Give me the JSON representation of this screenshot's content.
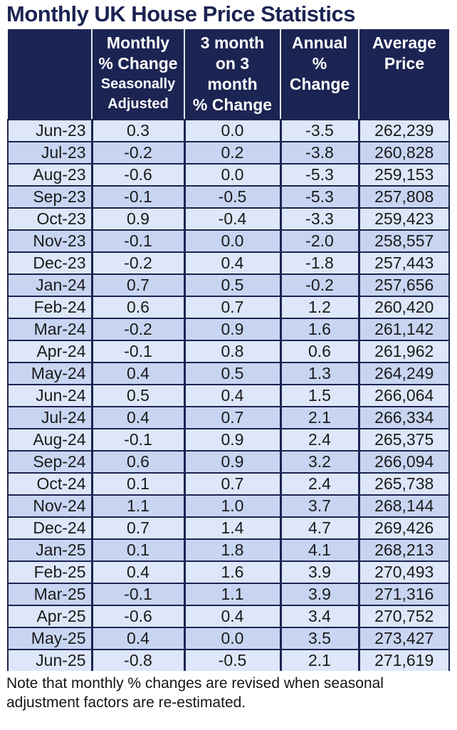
{
  "title": "Monthly UK House Price Statistics",
  "colors": {
    "navy": "#1b2452",
    "header_text": "#ffffff",
    "row_light": "#dde7f9",
    "row_dark": "#c8d5f2",
    "body_text": "#1a1a1a"
  },
  "table": {
    "headers": [
      {
        "main": "",
        "sub": ""
      },
      {
        "main": "Monthly\n% Change",
        "sub": "Seasonally\nAdjusted"
      },
      {
        "main": "3 month\non 3\nmonth\n% Change",
        "sub": ""
      },
      {
        "main": "Annual\n%\nChange",
        "sub": ""
      },
      {
        "main": "Average\nPrice",
        "sub": ""
      }
    ]
  },
  "note": "Note that monthly % changes are revised when seasonal adjustment factors are re-estimated.",
  "chart_data": {
    "type": "table",
    "title": "Monthly UK House Price Statistics",
    "columns": [
      "",
      "Monthly % Change Seasonally Adjusted",
      "3 month on 3 month % Change",
      "Annual % Change",
      "Average Price"
    ],
    "rows": [
      [
        "Jun-23",
        "0.3",
        "0.0",
        "-3.5",
        "262,239"
      ],
      [
        "Jul-23",
        "-0.2",
        "0.2",
        "-3.8",
        "260,828"
      ],
      [
        "Aug-23",
        "-0.6",
        "0.0",
        "-5.3",
        "259,153"
      ],
      [
        "Sep-23",
        "-0.1",
        "-0.5",
        "-5.3",
        "257,808"
      ],
      [
        "Oct-23",
        "0.9",
        "-0.4",
        "-3.3",
        "259,423"
      ],
      [
        "Nov-23",
        "-0.1",
        "0.0",
        "-2.0",
        "258,557"
      ],
      [
        "Dec-23",
        "-0.2",
        "0.4",
        "-1.8",
        "257,443"
      ],
      [
        "Jan-24",
        "0.7",
        "0.5",
        "-0.2",
        "257,656"
      ],
      [
        "Feb-24",
        "0.6",
        "0.7",
        "1.2",
        "260,420"
      ],
      [
        "Mar-24",
        "-0.2",
        "0.9",
        "1.6",
        "261,142"
      ],
      [
        "Apr-24",
        "-0.1",
        "0.8",
        "0.6",
        "261,962"
      ],
      [
        "May-24",
        "0.4",
        "0.5",
        "1.3",
        "264,249"
      ],
      [
        "Jun-24",
        "0.5",
        "0.4",
        "1.5",
        "266,064"
      ],
      [
        "Jul-24",
        "0.4",
        "0.7",
        "2.1",
        "266,334"
      ],
      [
        "Aug-24",
        "-0.1",
        "0.9",
        "2.4",
        "265,375"
      ],
      [
        "Sep-24",
        "0.6",
        "0.9",
        "3.2",
        "266,094"
      ],
      [
        "Oct-24",
        "0.1",
        "0.7",
        "2.4",
        "265,738"
      ],
      [
        "Nov-24",
        "1.1",
        "1.0",
        "3.7",
        "268,144"
      ],
      [
        "Dec-24",
        "0.7",
        "1.4",
        "4.7",
        "269,426"
      ],
      [
        "Jan-25",
        "0.1",
        "1.8",
        "4.1",
        "268,213"
      ],
      [
        "Feb-25",
        "0.4",
        "1.6",
        "3.9",
        "270,493"
      ],
      [
        "Mar-25",
        "-0.1",
        "1.1",
        "3.9",
        "271,316"
      ],
      [
        "Apr-25",
        "-0.6",
        "0.4",
        "3.4",
        "270,752"
      ],
      [
        "May-25",
        "0.4",
        "0.0",
        "3.5",
        "273,427"
      ],
      [
        "Jun-25",
        "-0.8",
        "-0.5",
        "2.1",
        "271,619"
      ]
    ]
  }
}
